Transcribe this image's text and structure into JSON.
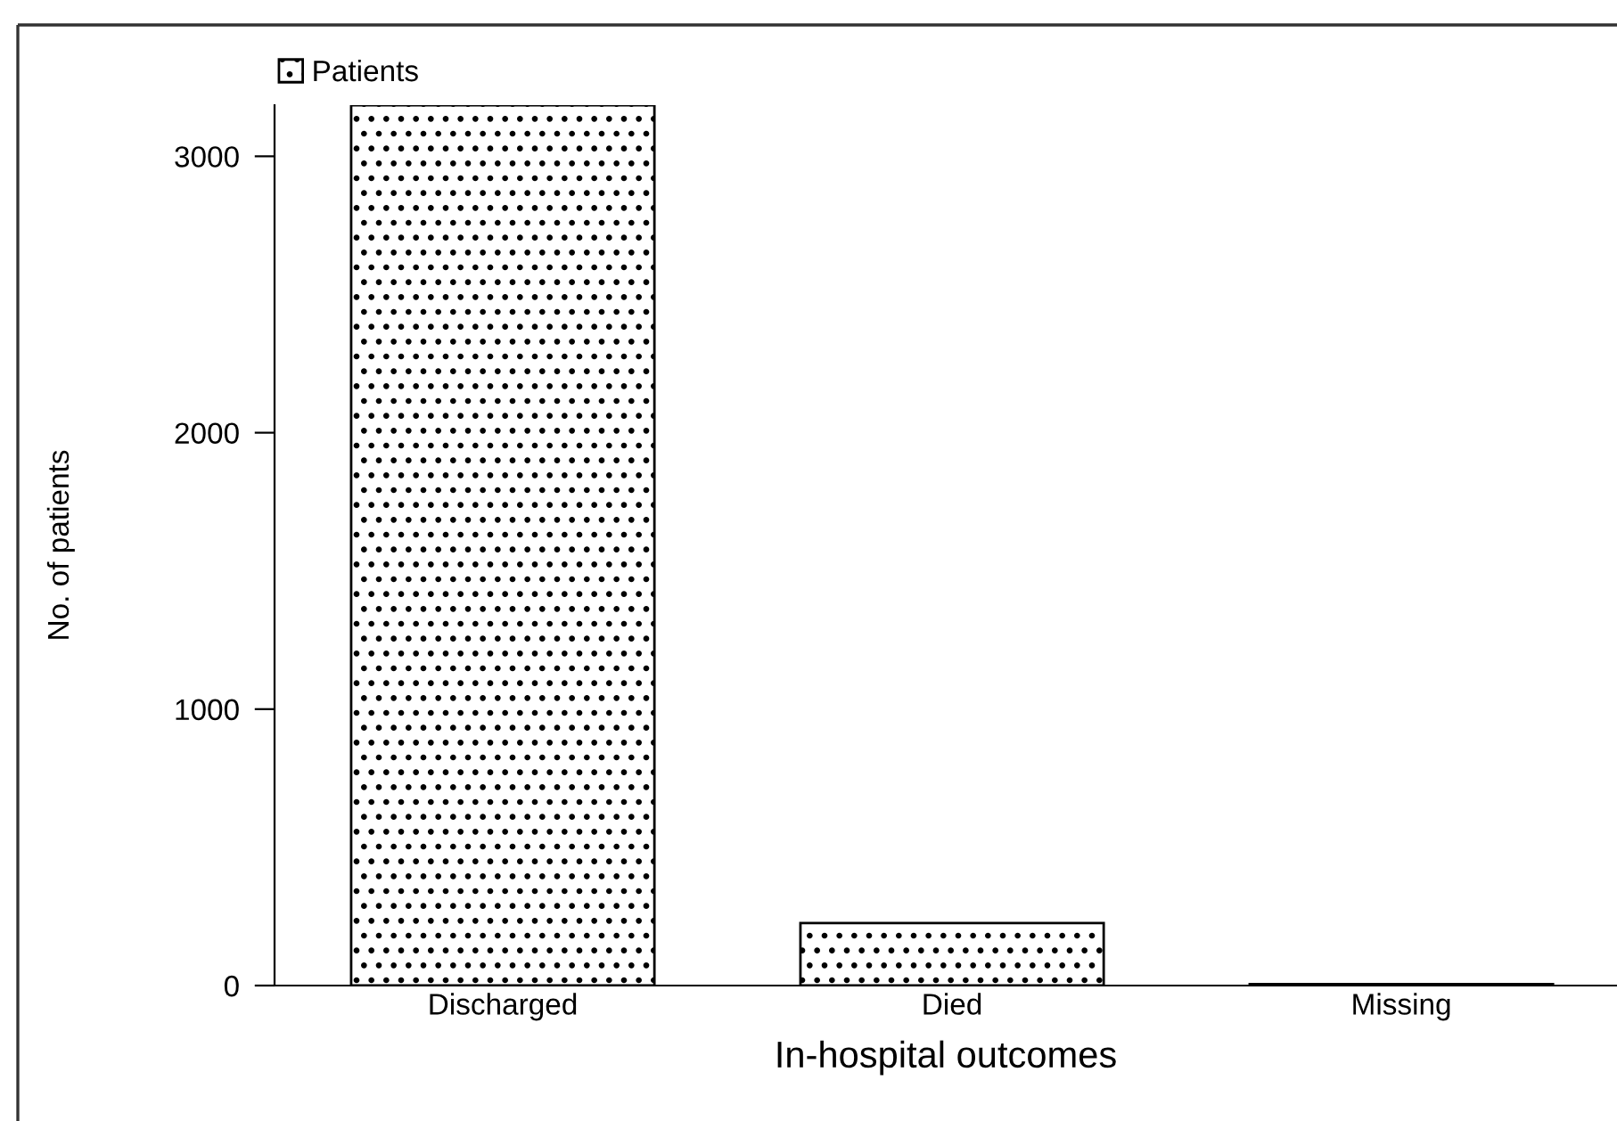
{
  "chart_data": {
    "type": "bar",
    "xlabel": "In-hospital outcomes",
    "ylabel": "No. of patients",
    "categories": [
      "Discharged",
      "Died",
      "Missing"
    ],
    "series": [
      {
        "name": "Patients",
        "color": "#000000",
        "values": [
          3185,
          226,
          5
        ]
      }
    ],
    "ylim": [
      0,
      3185
    ],
    "yticks": [
      0,
      1000,
      2000,
      3000
    ],
    "grid": false,
    "legend": "top left"
  }
}
